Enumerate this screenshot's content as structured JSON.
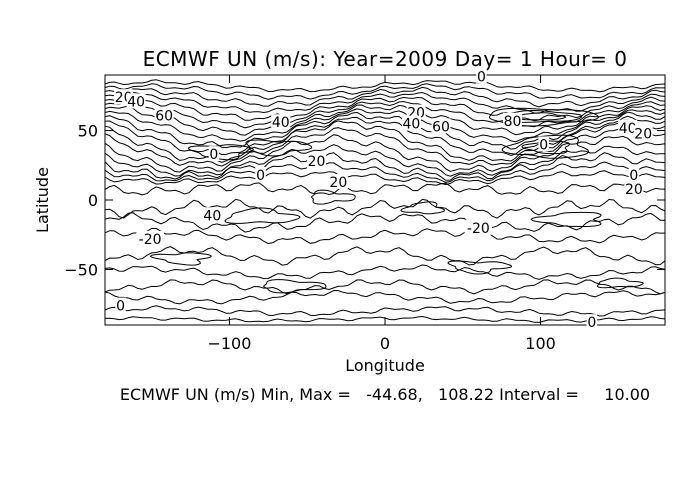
{
  "chart_data": {
    "type": "contour",
    "title": "ECMWF UN (m/s): Year=2009 Day=  1 Hour= 0",
    "xlabel": "Longitude",
    "ylabel": "Latitude",
    "xlim": [
      -180,
      180
    ],
    "ylim": [
      -90,
      90
    ],
    "x_ticks": [
      -100,
      0,
      100
    ],
    "y_ticks": [
      -50,
      0,
      50
    ],
    "grid": false,
    "contour_interval": 10.0,
    "min": -44.68,
    "max": 108.22,
    "footer": "ECMWF UN (m/s) Min, Max =   -44.68,   108.22 Interval =     10.00",
    "contour_labels": [
      {
        "text": "20",
        "lon": -168,
        "lat": 74
      },
      {
        "text": "40",
        "lon": -160,
        "lat": 71
      },
      {
        "text": "60",
        "lon": -142,
        "lat": 61
      },
      {
        "text": "40",
        "lon": -67,
        "lat": 56
      },
      {
        "text": "0",
        "lon": -110,
        "lat": 33
      },
      {
        "text": "20",
        "lon": -44,
        "lat": 28
      },
      {
        "text": "0",
        "lon": -80,
        "lat": 18
      },
      {
        "text": "20",
        "lon": -30,
        "lat": 13
      },
      {
        "text": "20",
        "lon": 20,
        "lat": 63
      },
      {
        "text": "40",
        "lon": 17,
        "lat": 55
      },
      {
        "text": "60",
        "lon": 36,
        "lat": 53
      },
      {
        "text": "80",
        "lon": 82,
        "lat": 57
      },
      {
        "text": "0",
        "lon": 62,
        "lat": 89
      },
      {
        "text": "0",
        "lon": 102,
        "lat": 40
      },
      {
        "text": "40",
        "lon": 156,
        "lat": 52
      },
      {
        "text": "20",
        "lon": 166,
        "lat": 48
      },
      {
        "text": "0",
        "lon": 160,
        "lat": 18
      },
      {
        "text": "20",
        "lon": 160,
        "lat": 8
      },
      {
        "text": "40",
        "lon": -111,
        "lat": -11
      },
      {
        "text": "-20",
        "lon": -151,
        "lat": -28
      },
      {
        "text": "-20",
        "lon": 60,
        "lat": -20
      },
      {
        "text": "0",
        "lon": -170,
        "lat": -76
      },
      {
        "text": "0",
        "lon": 133,
        "lat": -88
      }
    ]
  }
}
